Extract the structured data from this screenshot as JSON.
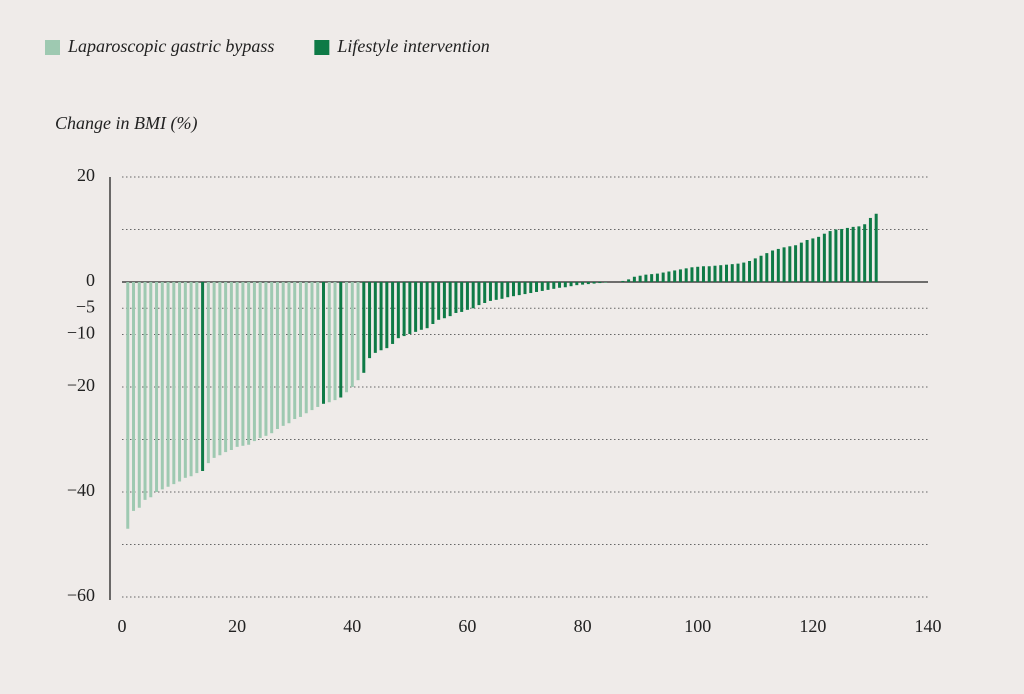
{
  "chart_data": {
    "type": "bar",
    "y_label": "Change in BMI (%)",
    "xlim": [
      0,
      140
    ],
    "xticks": [
      0,
      20,
      40,
      60,
      80,
      100,
      120,
      140
    ],
    "ylim": [
      -60,
      20
    ],
    "yticks": [
      20,
      0,
      {
        "value": -5,
        "label": "−5"
      },
      {
        "value": -10,
        "label": "−10"
      },
      {
        "value": -20,
        "label": "−20"
      },
      {
        "value": -40,
        "label": "−40"
      },
      {
        "value": -60,
        "label": "−60"
      }
    ],
    "ygrid": [
      20,
      10,
      0,
      -5,
      -10,
      -20,
      -30,
      -40,
      -50,
      -60
    ],
    "grid": true,
    "legend": "top-left",
    "series": [
      {
        "name": "Laparoscopic gastric bypass",
        "color": "#9ec9b1",
        "x": [
          1,
          2,
          3,
          4,
          5,
          6,
          7,
          8,
          9,
          10,
          11,
          12,
          13,
          15,
          16,
          17,
          18,
          19,
          20,
          21,
          22,
          23,
          24,
          25,
          26,
          27,
          28,
          29,
          30,
          31,
          32,
          33,
          34,
          36,
          37,
          39,
          40,
          41
        ],
        "values": [
          -47,
          -43.6,
          -43,
          -41.5,
          -41,
          -40,
          -39.5,
          -39,
          -38.5,
          -38,
          -37.3,
          -37,
          -36.4,
          -34.5,
          -33.5,
          -33,
          -32.4,
          -32,
          -31.4,
          -31.2,
          -31,
          -30.3,
          -29.7,
          -29.3,
          -28.8,
          -28,
          -27.4,
          -26.9,
          -26.1,
          -25.7,
          -25,
          -24.4,
          -23.8,
          -22.9,
          -22.5,
          -21,
          -20,
          -18.7
        ]
      },
      {
        "name": "Lifestyle intervention",
        "color": "#0e7a46",
        "x": [
          14,
          35,
          38,
          42,
          43,
          44,
          45,
          46,
          47,
          48,
          49,
          50,
          51,
          52,
          53,
          54,
          55,
          56,
          57,
          58,
          59,
          60,
          61,
          62,
          63,
          64,
          65,
          66,
          67,
          68,
          69,
          70,
          71,
          72,
          73,
          74,
          75,
          76,
          77,
          78,
          79,
          80,
          81,
          82,
          83,
          84,
          85,
          86,
          87,
          88,
          89,
          90,
          91,
          92,
          93,
          94,
          95,
          96,
          97,
          98,
          99,
          100,
          101,
          102,
          103,
          104,
          105,
          106,
          107,
          108,
          109,
          110,
          111,
          112,
          113,
          114,
          115,
          116,
          117,
          118,
          119,
          120,
          121,
          122,
          123,
          124,
          125,
          126,
          127,
          128,
          129,
          130,
          131
        ],
        "values": [
          -36,
          -23.2,
          -22,
          -17.3,
          -14.5,
          -13.5,
          -13,
          -12.6,
          -11.8,
          -10.7,
          -10.3,
          -9.9,
          -9.5,
          -9.1,
          -8.8,
          -8,
          -7.2,
          -6.9,
          -6.5,
          -5.9,
          -5.7,
          -5.3,
          -5,
          -4.4,
          -4,
          -3.6,
          -3.4,
          -3.2,
          -2.9,
          -2.7,
          -2.5,
          -2.3,
          -2.1,
          -1.9,
          -1.7,
          -1.5,
          -1.3,
          -1.1,
          -1,
          -0.8,
          -0.6,
          -0.5,
          -0.4,
          -0.3,
          -0.2,
          -0.1,
          0,
          0,
          0.2,
          0.5,
          1,
          1.2,
          1.4,
          1.5,
          1.6,
          1.8,
          2,
          2.2,
          2.4,
          2.6,
          2.8,
          2.9,
          3,
          3,
          3.1,
          3.2,
          3.3,
          3.4,
          3.5,
          3.7,
          4,
          4.5,
          5,
          5.5,
          6,
          6.3,
          6.6,
          6.8,
          7,
          7.5,
          8,
          8.3,
          8.6,
          9.2,
          9.7,
          10,
          10.1,
          10.3,
          10.5,
          10.6,
          11,
          12.2,
          13
        ]
      }
    ]
  }
}
